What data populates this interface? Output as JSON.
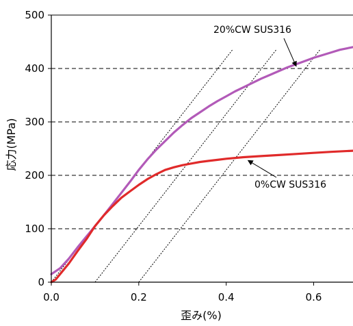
{
  "chart_data": {
    "type": "line",
    "title": "",
    "xlabel": "歪み(%)",
    "ylabel": "応力(MPa)",
    "xlim": [
      0,
      0.69
    ],
    "ylim": [
      0,
      500
    ],
    "x_ticks": [
      "0.0",
      "0.2",
      "0.4",
      "0.6"
    ],
    "x_tick_values": [
      0,
      0.2,
      0.4,
      0.6
    ],
    "y_ticks": [
      "0",
      "100",
      "200",
      "300",
      "400",
      "500"
    ],
    "y_tick_values": [
      0,
      100,
      200,
      300,
      400,
      500
    ],
    "grid": "horizontal dashed",
    "legend": "none (annotations with arrows)",
    "series": [
      {
        "name": "20%CW SUS316",
        "color": "#b25ab8",
        "x": [
          0,
          0.02,
          0.04,
          0.06,
          0.08,
          0.1,
          0.12,
          0.14,
          0.16,
          0.18,
          0.2,
          0.22,
          0.24,
          0.26,
          0.28,
          0.3,
          0.32,
          0.34,
          0.36,
          0.38,
          0.4,
          0.42,
          0.44,
          0.46,
          0.48,
          0.5,
          0.52,
          0.54,
          0.56,
          0.58,
          0.6,
          0.62,
          0.64,
          0.66,
          0.69
        ],
        "y": [
          15,
          26,
          44,
          65,
          85,
          105,
          125,
          146,
          167,
          188,
          210,
          230,
          248,
          264,
          280,
          294,
          307,
          318,
          329,
          339,
          348,
          357,
          365,
          373,
          381,
          388,
          395,
          402,
          408,
          414,
          420,
          425,
          430,
          435,
          440
        ]
      },
      {
        "name": "0%CW SUS316",
        "color": "#e02a2a",
        "x": [
          0,
          0.01,
          0.02,
          0.04,
          0.06,
          0.08,
          0.1,
          0.12,
          0.14,
          0.16,
          0.18,
          0.2,
          0.22,
          0.24,
          0.26,
          0.28,
          0.3,
          0.32,
          0.34,
          0.36,
          0.38,
          0.4,
          0.44,
          0.48,
          0.52,
          0.56,
          0.6,
          0.64,
          0.69
        ],
        "y": [
          0,
          5,
          15,
          35,
          58,
          80,
          105,
          125,
          142,
          158,
          170,
          182,
          193,
          202,
          210,
          215,
          219,
          222,
          225,
          227,
          229,
          231,
          234,
          236,
          238,
          240,
          242,
          244,
          246
        ]
      }
    ],
    "offset_lines": [
      {
        "x0": 0.0,
        "slope": 1050
      },
      {
        "x0": 0.1,
        "slope": 1050
      },
      {
        "x0": 0.2,
        "slope": 1050
      }
    ],
    "annotations": [
      {
        "text": "20%CW SUS316",
        "target_x": 0.56,
        "target_y": 412
      },
      {
        "text": "0%CW SUS316",
        "target_x": 0.45,
        "target_y": 233
      }
    ]
  }
}
